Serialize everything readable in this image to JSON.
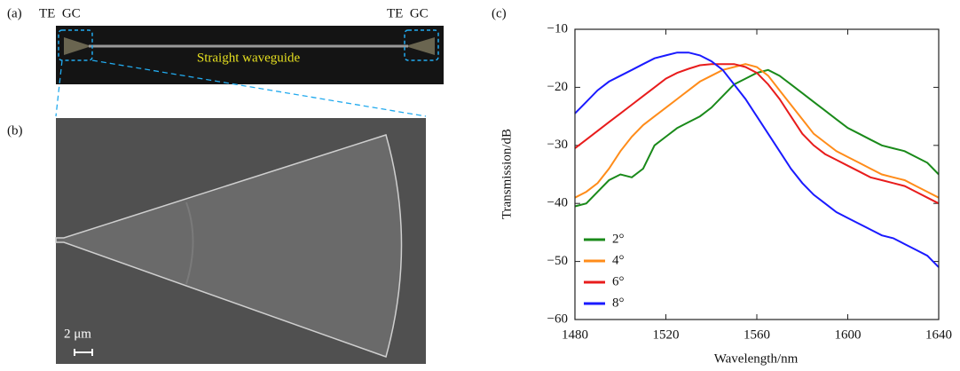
{
  "panels": {
    "a": {
      "label": "(a)",
      "left_tag": "TE  GC",
      "right_tag": "TE  GC",
      "caption": "Straight waveguide"
    },
    "b": {
      "label": "(b)",
      "scale_bar": "2 μm"
    },
    "c": {
      "label": "(c)"
    }
  },
  "chart_data": {
    "type": "line",
    "x_label": "Wavelength/nm",
    "y_label": "Transmission/dB",
    "x": [
      1480,
      1485,
      1490,
      1495,
      1500,
      1505,
      1510,
      1515,
      1520,
      1525,
      1530,
      1535,
      1540,
      1545,
      1550,
      1555,
      1560,
      1565,
      1570,
      1575,
      1580,
      1585,
      1590,
      1595,
      1600,
      1605,
      1610,
      1615,
      1620,
      1625,
      1630,
      1635,
      1640
    ],
    "series": [
      {
        "name": "2°",
        "color": "#1a8a1a",
        "values": [
          -40.5,
          -40,
          -38,
          -36,
          -35,
          -35.5,
          -34,
          -30,
          -28.5,
          -27,
          -26,
          -25,
          -23.5,
          -21.5,
          -19.5,
          -18.5,
          -17.5,
          -17,
          -18,
          -19.5,
          -21,
          -22.5,
          -24,
          -25.5,
          -27,
          -28,
          -29,
          -30,
          -30.5,
          -31,
          -32,
          -33,
          -35
        ]
      },
      {
        "name": "4°",
        "color": "#ff8c1a",
        "values": [
          -39,
          -38,
          -36.5,
          -34,
          -31,
          -28.5,
          -26.5,
          -25,
          -23.5,
          -22,
          -20.5,
          -19,
          -18,
          -17,
          -16.5,
          -16,
          -16.5,
          -18,
          -20.5,
          -23,
          -25.5,
          -28,
          -29.5,
          -31,
          -32,
          -33,
          -34,
          -35,
          -35.5,
          -36,
          -37,
          -38,
          -39
        ]
      },
      {
        "name": "6°",
        "color": "#e81c1c",
        "values": [
          -30.5,
          -29,
          -27.5,
          -26,
          -24.5,
          -23,
          -21.5,
          -20,
          -18.5,
          -17.5,
          -16.8,
          -16.2,
          -16,
          -16,
          -16,
          -16.5,
          -17.5,
          -19.5,
          -22,
          -25,
          -28,
          -30,
          -31.5,
          -32.5,
          -33.5,
          -34.5,
          -35.5,
          -36,
          -36.5,
          -37,
          -38,
          -39,
          -40
        ]
      },
      {
        "name": "8°",
        "color": "#1a1aff",
        "values": [
          -24.5,
          -22.5,
          -20.5,
          -19,
          -18,
          -17,
          -16,
          -15,
          -14.5,
          -14,
          -14,
          -14.5,
          -15.5,
          -17,
          -19.5,
          -22,
          -25,
          -28,
          -31,
          -34,
          -36.5,
          -38.5,
          -40,
          -41.5,
          -42.5,
          -43.5,
          -44.5,
          -45.5,
          -46,
          -47,
          -48,
          -49,
          -51
        ]
      }
    ],
    "xlim": [
      1480,
      1640
    ],
    "xticks": [
      1480,
      1520,
      1560,
      1600,
      1640
    ],
    "ylim": [
      -60,
      -10
    ],
    "yticks": [
      {
        "value": -60,
        "label": "−60"
      },
      {
        "value": -50,
        "label": "−50"
      },
      {
        "value": -40,
        "label": "−40"
      },
      {
        "value": -30,
        "label": "−30"
      },
      {
        "value": -20,
        "label": "−20"
      },
      {
        "value": -10,
        "label": "−10"
      }
    ],
    "legend": "lower left"
  }
}
